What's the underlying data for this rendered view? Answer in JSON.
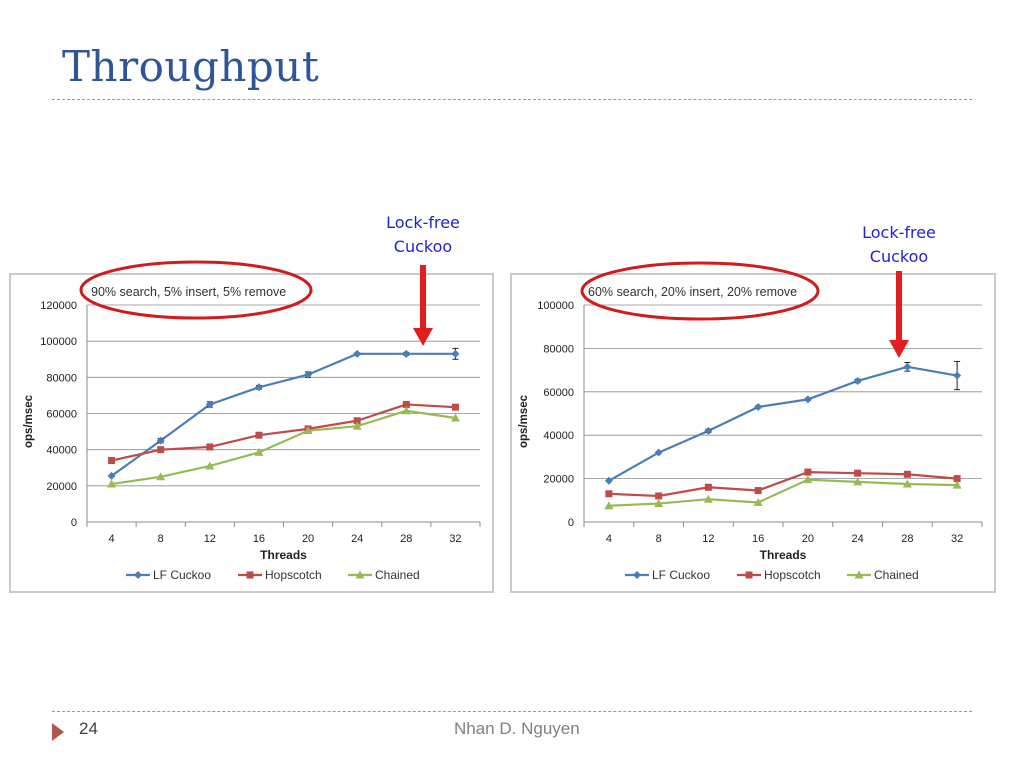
{
  "slide": {
    "title": "Throughput",
    "page_number": "24",
    "author": "Nhan D. Nguyen"
  },
  "callouts": {
    "left": [
      "Lock-free",
      "Cuckoo"
    ],
    "right": [
      "Lock-free",
      "Cuckoo"
    ],
    "arrow_color": "#e31e1e",
    "ellipse_color": "#d01c1c"
  },
  "chart_data": [
    {
      "type": "line",
      "title": "90% search, 5% insert, 5% remove",
      "xlabel": "Threads",
      "ylabel": "ops/msec",
      "categories": [
        "4",
        "8",
        "12",
        "16",
        "20",
        "24",
        "28",
        "32"
      ],
      "ylim": [
        0,
        120000
      ],
      "yticks": [
        "0",
        "20000",
        "40000",
        "60000",
        "80000",
        "100000",
        "120000"
      ],
      "grid": true,
      "legend_position": "bottom",
      "series": [
        {
          "name": "LF Cuckoo",
          "color": "#4a7ebb",
          "marker": "diamond",
          "values": [
            25500,
            45000,
            65000,
            74500,
            81500,
            93000,
            93000,
            93000
          ],
          "errors": [
            0,
            1200,
            1500,
            1000,
            1500,
            500,
            800,
            3000
          ]
        },
        {
          "name": "Hopscotch",
          "color": "#be4b48",
          "marker": "square",
          "values": [
            34000,
            40000,
            41500,
            48000,
            51500,
            56000,
            65000,
            63500
          ],
          "errors": [
            0,
            0,
            0,
            0,
            0,
            0,
            0,
            0
          ]
        },
        {
          "name": "Chained",
          "color": "#98b954",
          "marker": "triangle",
          "values": [
            21000,
            25000,
            31000,
            38500,
            50500,
            53000,
            61500,
            57500
          ],
          "errors": [
            0,
            0,
            0,
            0,
            0,
            0,
            0,
            0
          ]
        }
      ]
    },
    {
      "type": "line",
      "title": "60% search, 20% insert, 20% remove",
      "xlabel": "Threads",
      "ylabel": "ops/msec",
      "categories": [
        "4",
        "8",
        "12",
        "16",
        "20",
        "24",
        "28",
        "32"
      ],
      "ylim": [
        0,
        100000
      ],
      "yticks": [
        "0",
        "20000",
        "40000",
        "60000",
        "80000",
        "100000"
      ],
      "grid": true,
      "legend_position": "bottom",
      "series": [
        {
          "name": "LF Cuckoo",
          "color": "#4a7ebb",
          "marker": "diamond",
          "values": [
            19000,
            32000,
            42000,
            53000,
            56500,
            65000,
            71500,
            67500
          ],
          "errors": [
            0,
            0,
            800,
            500,
            500,
            800,
            2000,
            6500
          ]
        },
        {
          "name": "Hopscotch",
          "color": "#be4b48",
          "marker": "square",
          "values": [
            13000,
            12000,
            16000,
            14500,
            23000,
            22500,
            22000,
            20000
          ],
          "errors": [
            0,
            0,
            0,
            0,
            0,
            0,
            1000,
            0
          ]
        },
        {
          "name": "Chained",
          "color": "#98b954",
          "marker": "triangle",
          "values": [
            7500,
            8500,
            10500,
            9000,
            19500,
            18500,
            17500,
            17000
          ],
          "errors": [
            0,
            0,
            0,
            0,
            0,
            0,
            0,
            0
          ]
        }
      ]
    }
  ]
}
